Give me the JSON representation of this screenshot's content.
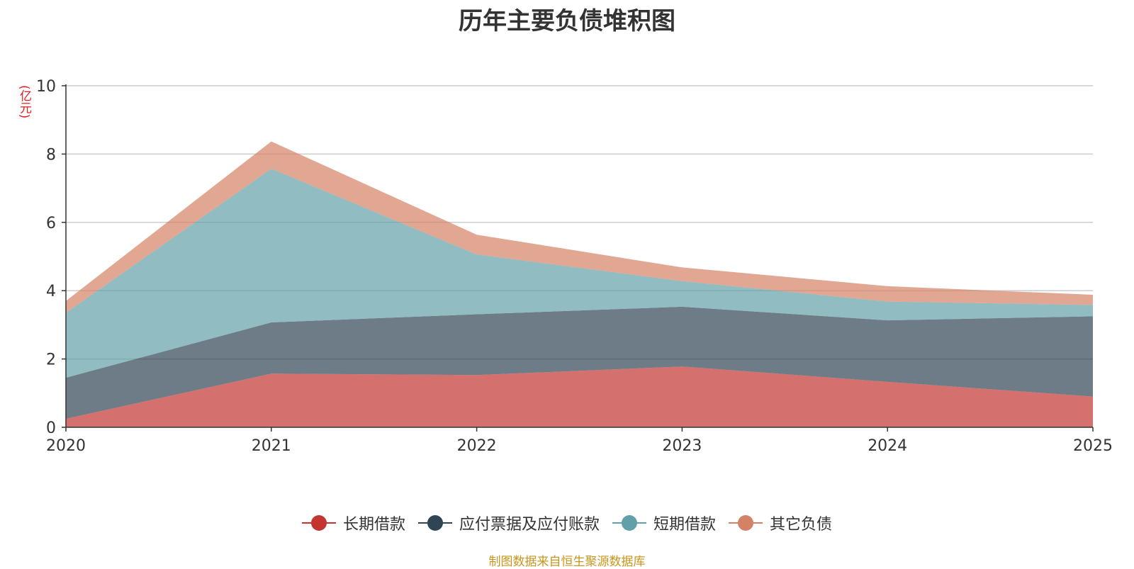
{
  "chart_data": {
    "type": "area",
    "stacked": true,
    "title": "历年主要负债堆积图",
    "ylabel": "(亿元)",
    "xlabel": "",
    "categories": [
      "2020",
      "2021",
      "2022",
      "2023",
      "2024",
      "2025"
    ],
    "ylim": [
      0,
      10
    ],
    "yticks": [
      0,
      2,
      4,
      6,
      8,
      10
    ],
    "grid": true,
    "legend_position": "bottom",
    "series": [
      {
        "name": "长期借款",
        "color": "#c23531",
        "values": [
          0.25,
          1.57,
          1.53,
          1.78,
          1.33,
          0.9
        ]
      },
      {
        "name": "应付票据及应付账款",
        "color": "#2f4554",
        "values": [
          1.2,
          1.5,
          1.78,
          1.75,
          1.8,
          2.35
        ]
      },
      {
        "name": "短期借款",
        "color": "#61a0a8",
        "values": [
          1.9,
          4.5,
          1.75,
          0.75,
          0.55,
          0.33
        ]
      },
      {
        "name": "其它负债",
        "color": "#d48265",
        "values": [
          0.35,
          0.8,
          0.58,
          0.4,
          0.45,
          0.3
        ]
      }
    ]
  },
  "footer": "制图数据来自恒生聚源数据库"
}
